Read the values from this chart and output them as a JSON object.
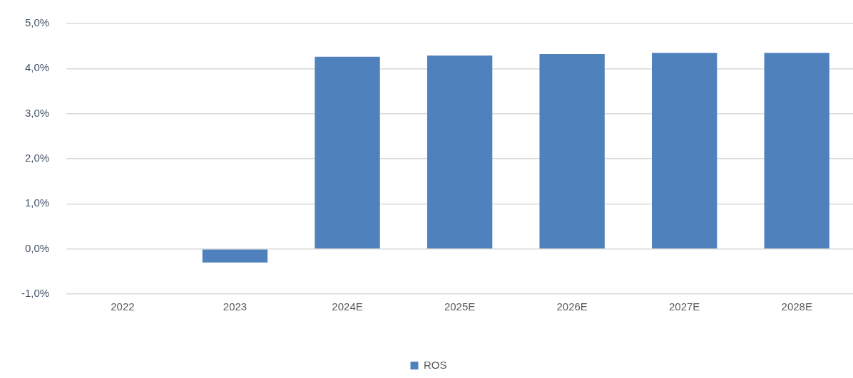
{
  "chart_data": {
    "type": "bar",
    "categories": [
      "2022",
      "2023",
      "2024E",
      "2025E",
      "2026E",
      "2027E",
      "2028E"
    ],
    "series": [
      {
        "name": "ROS",
        "color": "#4f81bd",
        "values": [
          null,
          -0.3,
          4.26,
          4.29,
          4.32,
          4.35,
          4.35
        ]
      }
    ],
    "ylim": [
      -1,
      5
    ],
    "yticks": [
      {
        "value": -1,
        "label": "-1,0%"
      },
      {
        "value": 0,
        "label": "0,0%"
      },
      {
        "value": 1,
        "label": "1,0%"
      },
      {
        "value": 2,
        "label": "2,0%"
      },
      {
        "value": 3,
        "label": "3,0%"
      },
      {
        "value": 4,
        "label": "4,0%"
      },
      {
        "value": 5,
        "label": "5,0%"
      }
    ],
    "grid": "y",
    "legend": "bottom"
  }
}
